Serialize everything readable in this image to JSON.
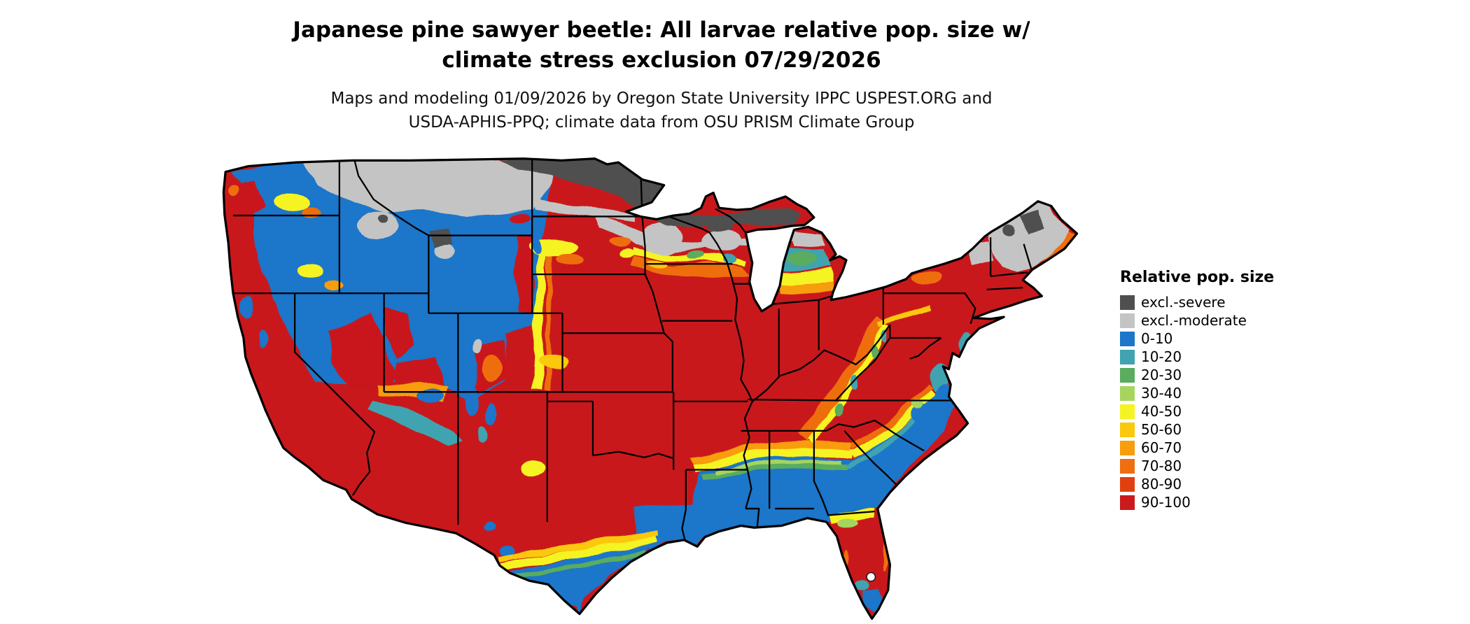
{
  "header": {
    "title_line1": "Japanese pine sawyer beetle: All larvae relative pop. size w/",
    "title_line2": "climate stress exclusion 07/29/2026",
    "subtitle_line1": "Maps and modeling 01/09/2026 by Oregon State University IPPC USPEST.ORG and",
    "subtitle_line2": "USDA-APHIS-PPQ; climate data from OSU PRISM Climate Group"
  },
  "legend": {
    "title": "Relative pop. size",
    "items": [
      {
        "label": "excl.-severe",
        "color": "#4f4f4f"
      },
      {
        "label": "excl.-moderate",
        "color": "#c4c4c4"
      },
      {
        "label": "0-10",
        "color": "#1d76c9"
      },
      {
        "label": "10-20",
        "color": "#3fa3b0"
      },
      {
        "label": "20-30",
        "color": "#5aac5e"
      },
      {
        "label": "30-40",
        "color": "#a5d45f"
      },
      {
        "label": "40-50",
        "color": "#f6f322"
      },
      {
        "label": "50-60",
        "color": "#fbc80d"
      },
      {
        "label": "60-70",
        "color": "#f89d0b"
      },
      {
        "label": "70-80",
        "color": "#ee6e10"
      },
      {
        "label": "80-90",
        "color": "#e04010"
      },
      {
        "label": "90-100",
        "color": "#ca1a1e"
      }
    ]
  }
}
